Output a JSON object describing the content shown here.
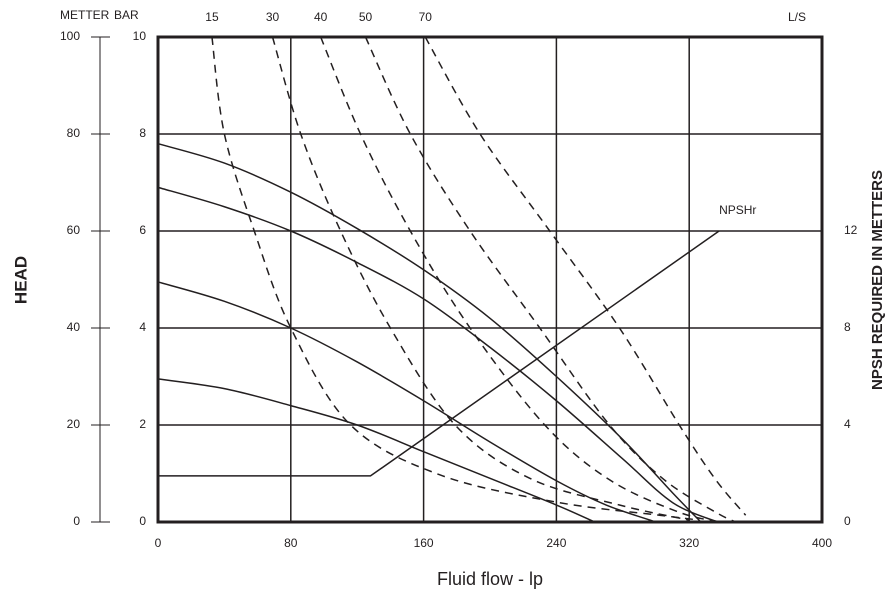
{
  "chart_data": {
    "type": "line",
    "x_label": "Fluid flow - lp",
    "y_label": "HEAD",
    "y_unit_label": "BAR",
    "y3_label": "METTER",
    "y2_label": "NPSH REQUIRED IN METTERS",
    "top_label": "L/S",
    "xlim": [
      0,
      400
    ],
    "xticks": [
      0,
      80,
      160,
      240,
      320,
      400
    ],
    "ylim": [
      0,
      10
    ],
    "yticks": [
      0,
      2,
      4,
      6,
      8,
      10
    ],
    "y2lim": [
      0,
      20
    ],
    "y2ticks": [
      0,
      4,
      8,
      12
    ],
    "y3lim": [
      0,
      100
    ],
    "y3ticks": [
      0,
      20,
      40,
      60,
      80,
      100
    ],
    "grid": true,
    "series": [
      {
        "style": "solid",
        "color": "#231f20",
        "x": [
          0,
          40,
          80,
          120,
          160,
          200,
          240,
          280,
          310,
          327
        ],
        "values": [
          7.8,
          7.4,
          6.8,
          6.05,
          5.2,
          4.2,
          3.0,
          1.7,
          0.6,
          0
        ]
      },
      {
        "style": "solid",
        "color": "#231f20",
        "x": [
          0,
          40,
          80,
          120,
          160,
          200,
          240,
          280,
          310,
          337
        ],
        "values": [
          6.9,
          6.5,
          6.0,
          5.35,
          4.6,
          3.6,
          2.5,
          1.3,
          0.4,
          0
        ]
      },
      {
        "style": "solid",
        "color": "#231f20",
        "x": [
          0,
          40,
          80,
          120,
          160,
          200,
          240,
          270,
          300
        ],
        "values": [
          4.95,
          4.55,
          4.0,
          3.3,
          2.5,
          1.65,
          0.85,
          0.35,
          0
        ]
      },
      {
        "style": "solid",
        "color": "#231f20",
        "x": [
          0,
          40,
          80,
          120,
          160,
          200,
          240,
          263
        ],
        "values": [
          2.95,
          2.75,
          2.4,
          2.0,
          1.45,
          0.9,
          0.35,
          0
        ]
      },
      {
        "name": "15",
        "style": "dashed",
        "color": "#231f20",
        "x": [
          32.5,
          40,
          58,
          80,
          116,
          170,
          240,
          302,
          326
        ],
        "values": [
          10,
          8,
          6,
          4,
          2,
          0.97,
          0.41,
          0.14,
          0.04
        ]
      },
      {
        "name": "30",
        "style": "dashed",
        "color": "#231f20",
        "x": [
          69,
          86,
          110,
          140,
          179,
          224,
          278,
          320
        ],
        "values": [
          10,
          8,
          6,
          4,
          2,
          0.9,
          0.35,
          0.04
        ]
      },
      {
        "name": "40",
        "style": "dashed",
        "color": "#231f20",
        "x": [
          98,
          122,
          152,
          188,
          233,
          272,
          314,
          339
        ],
        "values": [
          10,
          8,
          6,
          4,
          2,
          0.87,
          0.2,
          0
        ]
      },
      {
        "name": "50",
        "style": "dashed",
        "color": "#231f20",
        "x": [
          125,
          152,
          188,
          230,
          272,
          305,
          336,
          348
        ],
        "values": [
          10,
          8,
          6,
          4,
          2,
          0.87,
          0.2,
          0
        ]
      },
      {
        "name": "70",
        "style": "dashed",
        "color": "#231f20",
        "x": [
          161,
          194,
          236,
          278,
          314,
          336,
          354
        ],
        "values": [
          10,
          8,
          6,
          4,
          2,
          0.87,
          0.14
        ]
      },
      {
        "name": "NPSHr",
        "style": "straight",
        "axis": "y2",
        "color": "#231f20",
        "x": [
          0,
          128,
          338
        ],
        "values": [
          1.9,
          1.9,
          12
        ]
      }
    ]
  }
}
